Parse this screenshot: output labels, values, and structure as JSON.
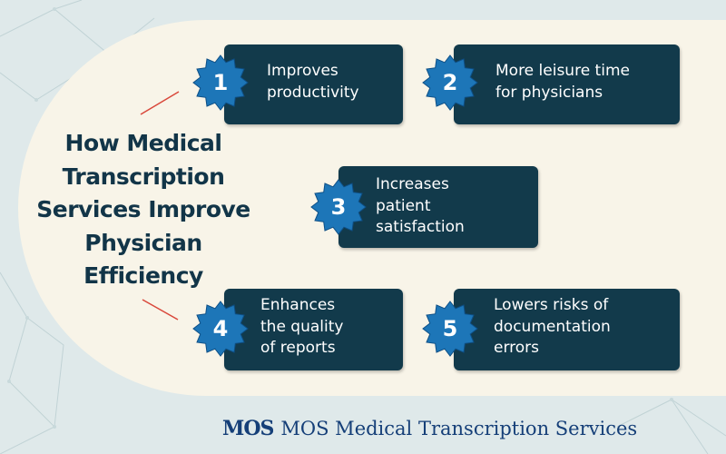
{
  "title_lines": [
    "How Medical",
    "Transcription",
    "Services Improve",
    "Physician",
    "Efficiency"
  ],
  "items": [
    {
      "number": "1",
      "text": "Improves\nproductivity"
    },
    {
      "number": "2",
      "text": "More leisure time\nfor physicians"
    },
    {
      "number": "3",
      "text": "Increases\npatient\nsatisfaction"
    },
    {
      "number": "4",
      "text": "Enhances\nthe quality\nof reports"
    },
    {
      "number": "5",
      "text": "Lowers risks of\ndocumentation\nerrors"
    }
  ],
  "footer": {
    "logo": "MOS",
    "brand": "MOS Medical Transcription Services"
  },
  "colors": {
    "card": "#123a4b",
    "badge": "#1d76b8",
    "title": "#123548",
    "accent_line": "#d9473a",
    "panel": "#f8f4e8"
  }
}
